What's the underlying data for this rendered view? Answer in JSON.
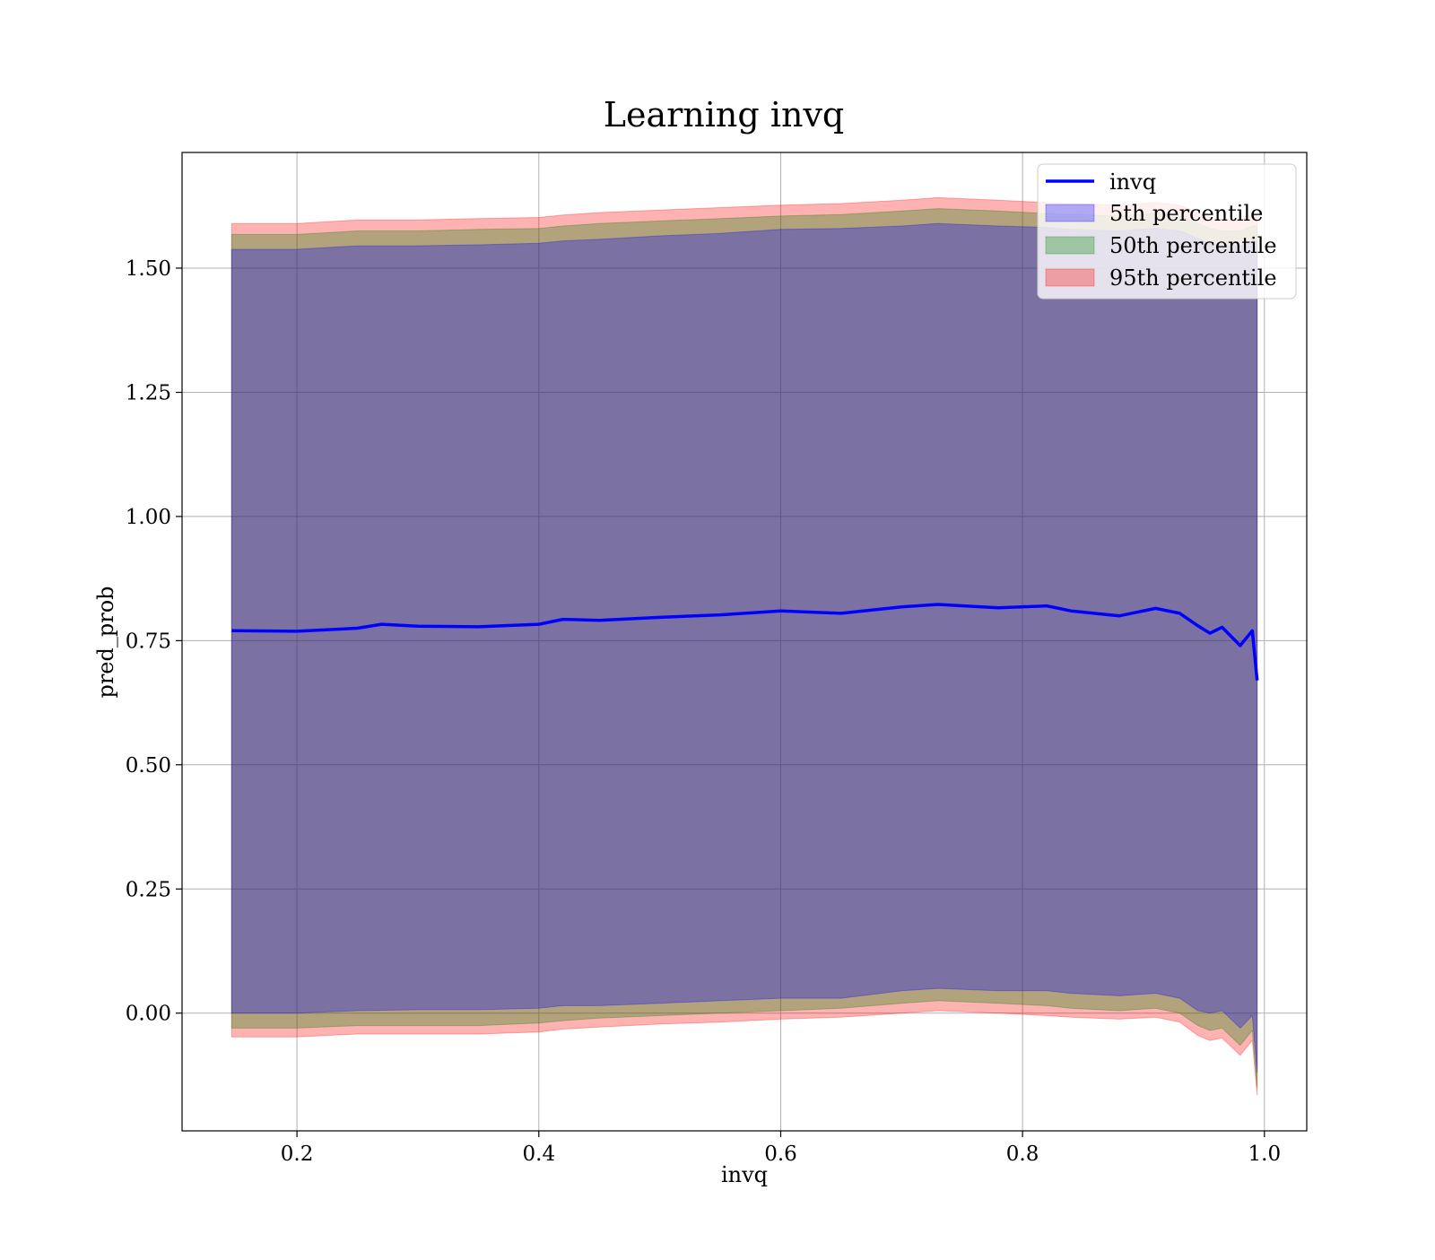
{
  "chart_data": {
    "type": "line",
    "title": "Learning invq",
    "xlabel": "invq",
    "ylabel": "pred_prob",
    "xlim": [
      0.105,
      1.035
    ],
    "ylim": [
      -0.237,
      1.733
    ],
    "xticks": [
      0.2,
      0.4,
      0.6,
      0.8,
      1.0
    ],
    "xtick_labels": [
      "0.2",
      "0.4",
      "0.6",
      "0.8",
      "1.0"
    ],
    "yticks": [
      0.0,
      0.25,
      0.5,
      0.75,
      1.0,
      1.25,
      1.5
    ],
    "ytick_labels": [
      "0.00",
      "0.25",
      "0.50",
      "0.75",
      "1.00",
      "1.25",
      "1.50"
    ],
    "grid": true,
    "legend_position": "top-right",
    "colors": {
      "line": "#0000ff",
      "band_5": "#0000ff",
      "band_50": "#008000",
      "band_95": "#ff0000"
    },
    "series": [
      {
        "name": "invq",
        "kind": "line",
        "x": [
          0.146,
          0.2,
          0.25,
          0.27,
          0.3,
          0.35,
          0.4,
          0.42,
          0.45,
          0.5,
          0.55,
          0.6,
          0.65,
          0.7,
          0.73,
          0.78,
          0.82,
          0.84,
          0.88,
          0.91,
          0.93,
          0.945,
          0.955,
          0.965,
          0.98,
          0.99,
          0.994
        ],
        "y": [
          0.77,
          0.769,
          0.775,
          0.783,
          0.779,
          0.778,
          0.783,
          0.793,
          0.791,
          0.797,
          0.802,
          0.81,
          0.805,
          0.818,
          0.823,
          0.816,
          0.82,
          0.81,
          0.8,
          0.815,
          0.805,
          0.78,
          0.765,
          0.777,
          0.74,
          0.77,
          0.67
        ]
      },
      {
        "name": "5th percentile",
        "kind": "band",
        "x": [
          0.146,
          0.2,
          0.25,
          0.3,
          0.35,
          0.4,
          0.42,
          0.45,
          0.5,
          0.55,
          0.6,
          0.65,
          0.7,
          0.73,
          0.78,
          0.82,
          0.84,
          0.88,
          0.91,
          0.93,
          0.945,
          0.955,
          0.965,
          0.98,
          0.99,
          0.994
        ],
        "lower": [
          0.0,
          0.0,
          0.005,
          0.007,
          0.007,
          0.01,
          0.015,
          0.015,
          0.02,
          0.025,
          0.03,
          0.03,
          0.045,
          0.05,
          0.045,
          0.045,
          0.04,
          0.035,
          0.04,
          0.03,
          0.005,
          0.0,
          0.005,
          -0.03,
          -0.005,
          -0.12
        ],
        "upper": [
          1.538,
          1.538,
          1.545,
          1.545,
          1.547,
          1.55,
          1.555,
          1.558,
          1.565,
          1.57,
          1.578,
          1.58,
          1.585,
          1.59,
          1.585,
          1.582,
          1.578,
          1.575,
          1.58,
          1.575,
          1.56,
          1.55,
          1.545,
          1.545,
          1.555,
          1.555
        ]
      },
      {
        "name": "50th percentile",
        "kind": "band",
        "x": [
          0.146,
          0.2,
          0.25,
          0.3,
          0.35,
          0.4,
          0.42,
          0.45,
          0.5,
          0.55,
          0.6,
          0.65,
          0.7,
          0.73,
          0.78,
          0.82,
          0.84,
          0.88,
          0.91,
          0.93,
          0.945,
          0.955,
          0.965,
          0.98,
          0.99,
          0.994
        ],
        "lower": [
          -0.03,
          -0.03,
          -0.025,
          -0.025,
          -0.025,
          -0.02,
          -0.015,
          -0.01,
          -0.005,
          0.0,
          0.005,
          0.01,
          0.02,
          0.025,
          0.02,
          0.015,
          0.01,
          0.005,
          0.01,
          0.0,
          -0.025,
          -0.035,
          -0.03,
          -0.065,
          -0.035,
          -0.15
        ],
        "upper": [
          1.568,
          1.568,
          1.575,
          1.575,
          1.578,
          1.58,
          1.585,
          1.59,
          1.595,
          1.6,
          1.605,
          1.608,
          1.615,
          1.62,
          1.615,
          1.61,
          1.608,
          1.605,
          1.61,
          1.605,
          1.59,
          1.58,
          1.575,
          1.575,
          1.585,
          1.585
        ]
      },
      {
        "name": "95th percentile",
        "kind": "band",
        "x": [
          0.146,
          0.2,
          0.25,
          0.3,
          0.35,
          0.4,
          0.42,
          0.45,
          0.5,
          0.55,
          0.6,
          0.65,
          0.7,
          0.73,
          0.78,
          0.82,
          0.84,
          0.88,
          0.91,
          0.93,
          0.945,
          0.955,
          0.965,
          0.98,
          0.99,
          0.994
        ],
        "lower": [
          -0.048,
          -0.048,
          -0.042,
          -0.042,
          -0.042,
          -0.038,
          -0.032,
          -0.028,
          -0.022,
          -0.018,
          -0.012,
          -0.008,
          0.0,
          0.005,
          0.0,
          -0.005,
          -0.008,
          -0.012,
          -0.008,
          -0.018,
          -0.045,
          -0.055,
          -0.05,
          -0.085,
          -0.055,
          -0.165
        ],
        "upper": [
          1.59,
          1.59,
          1.597,
          1.597,
          1.6,
          1.602,
          1.607,
          1.612,
          1.617,
          1.622,
          1.627,
          1.63,
          1.637,
          1.642,
          1.637,
          1.632,
          1.63,
          1.627,
          1.632,
          1.627,
          1.612,
          1.602,
          1.597,
          1.597,
          1.607,
          1.607
        ]
      }
    ]
  }
}
